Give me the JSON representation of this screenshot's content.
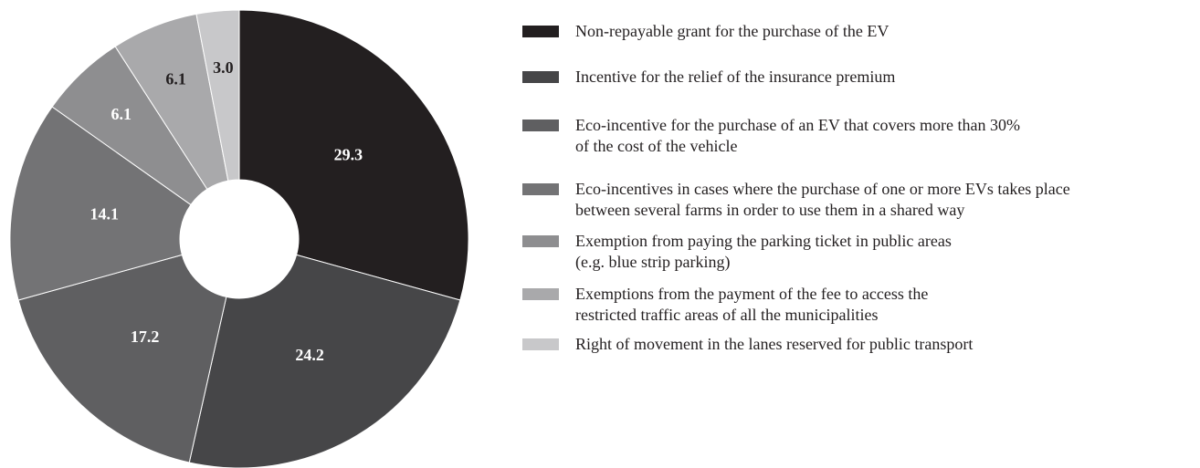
{
  "chart_data": {
    "type": "donut",
    "categories": [
      "Non-repayable grant for the purchase of the EV",
      "Incentive for the relief of the insurance premium",
      "Eco-incentive for the purchase of an EV that covers more than 30%\nof the cost of the vehicle",
      "Eco-incentives in cases where the purchase of one or more EVs takes place\nbetween several farms in order to use them in a shared way",
      "Exemption from paying the parking ticket in public areas\n(e.g. blue strip parking)",
      "Exemptions from the payment of the fee to access the\nrestricted traffic areas of all the municipalities",
      "Right of movement in the lanes reserved for public transport"
    ],
    "values": [
      29.3,
      24.2,
      17.2,
      14.1,
      6.1,
      6.1,
      3.0
    ],
    "value_labels": [
      "29.3",
      "24.2",
      "17.2",
      "14.1",
      "6.1",
      "6.1",
      "3.0"
    ],
    "colors": [
      "#231f20",
      "#464648",
      "#5f5f61",
      "#737375",
      "#8e8e90",
      "#a9a9ab",
      "#c8c8ca"
    ]
  }
}
